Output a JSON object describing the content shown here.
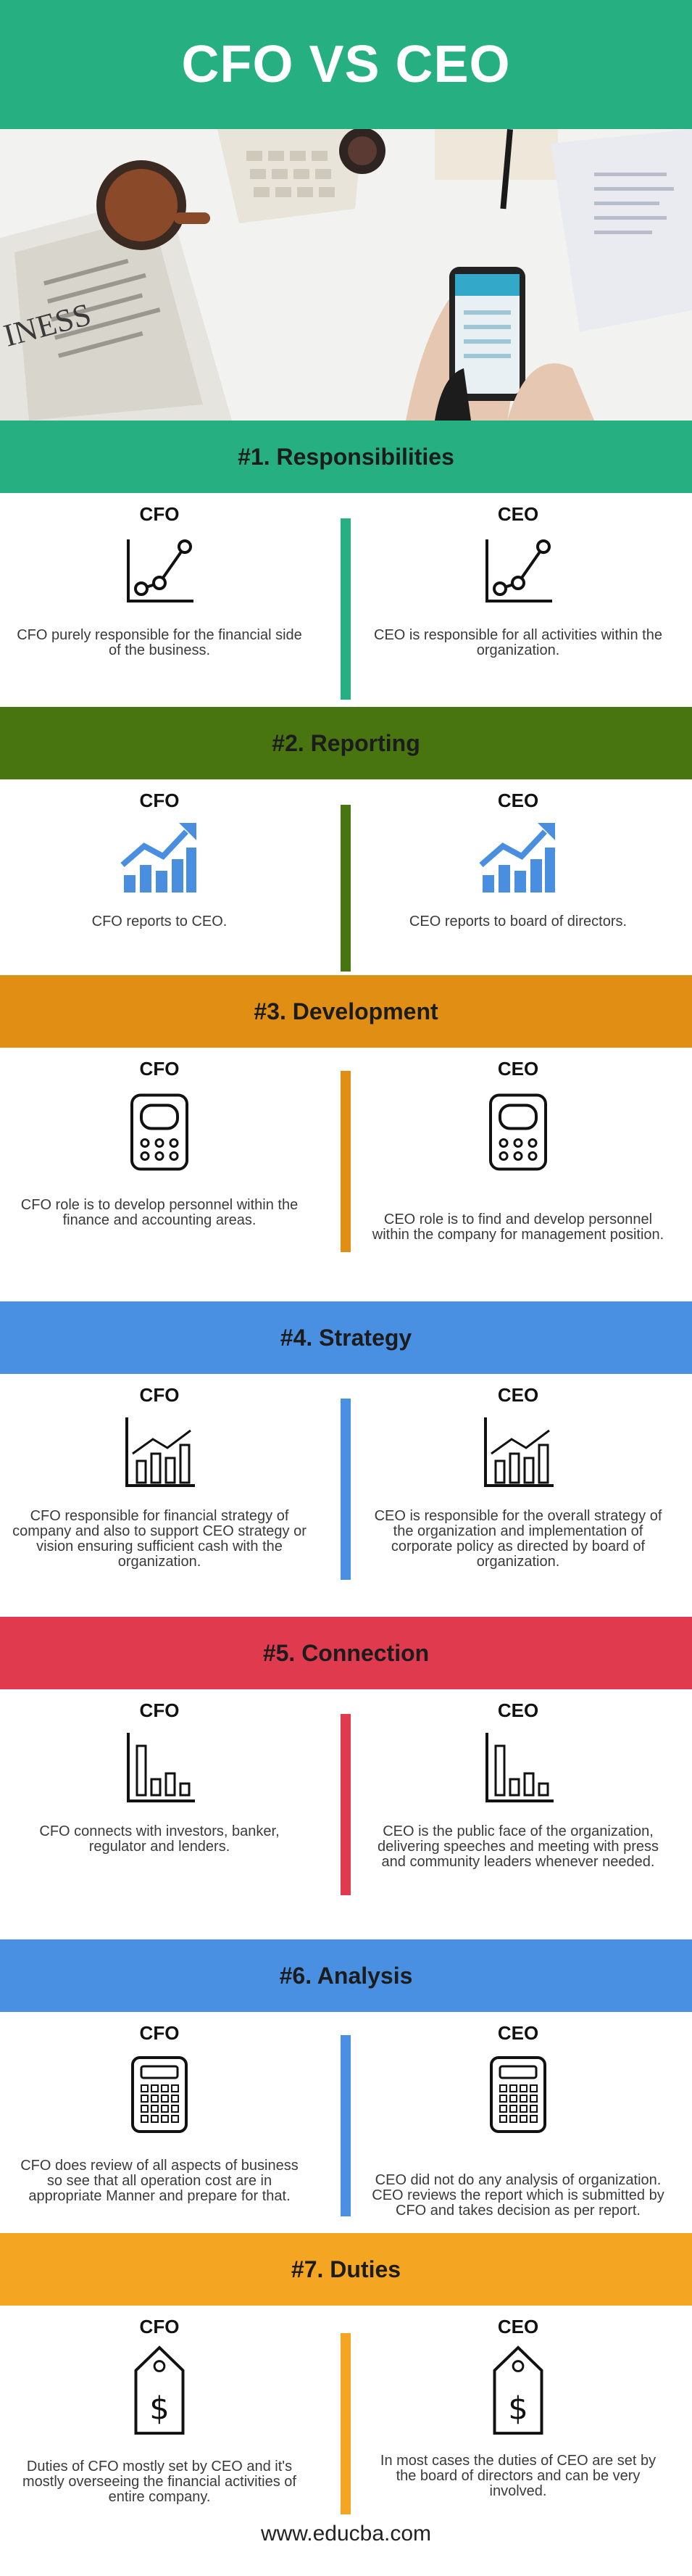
{
  "title": "CFO VS CEO",
  "colors": {
    "header": "#26b081",
    "responsibilities": "#26b081",
    "reporting": "#497510",
    "development": "#e08f14",
    "strategy": "#4a90e2",
    "connection": "#e03a4e",
    "analysis": "#4a90e2",
    "duties": "#f4a521"
  },
  "sections": [
    {
      "heading": "#1. Responsibilities",
      "icon": "line-chart-icon",
      "cfo_label": "CFO",
      "ceo_label": "CEO",
      "cfo_text": "CFO purely responsible for the financial side of the business.",
      "ceo_text": "CEO is responsible for all activities within the organization."
    },
    {
      "heading": "#2. Reporting",
      "icon": "growth-bars-icon",
      "cfo_label": "CFO",
      "ceo_label": "CEO",
      "cfo_text": "CFO reports to CEO.",
      "ceo_text": "CEO reports to board of directors."
    },
    {
      "heading": "#3. Development",
      "icon": "device-icon",
      "cfo_label": "CFO",
      "ceo_label": "CEO",
      "cfo_text": "CFO role is to develop personnel within the finance and accounting areas.",
      "ceo_text": "CEO role is to find and develop personnel within the company for management position."
    },
    {
      "heading": "#4. Strategy",
      "icon": "bar-trend-icon",
      "cfo_label": "CFO",
      "ceo_label": "CEO",
      "cfo_text": "CFO responsible for financial strategy of company and also to support CEO strategy or vision ensuring sufficient cash with the organization.",
      "ceo_text": "CEO is responsible for the overall strategy of the organization and implementation of corporate policy as directed by board of organization."
    },
    {
      "heading": "#5. Connection",
      "icon": "bar-chart-icon",
      "cfo_label": "CFO",
      "ceo_label": "CEO",
      "cfo_text": "CFO connects with investors, banker, regulator and lenders.",
      "ceo_text": "CEO is the public face of the organization, delivering speeches and meeting with press and community leaders whenever needed."
    },
    {
      "heading": "#6. Analysis",
      "icon": "calculator-icon",
      "cfo_label": "CFO",
      "ceo_label": "CEO",
      "cfo_text": "CFO does review of all aspects of business so see that all operation cost are in appropriate Manner and prepare for that.",
      "ceo_text": "CEO did not do any analysis of organization. CEO reviews the report which is submitted by CFO and takes decision as per report."
    },
    {
      "heading": "#7. Duties",
      "icon": "price-tag-icon",
      "cfo_label": "CFO",
      "ceo_label": "CEO",
      "cfo_text": "Duties of CFO mostly set by CEO and it's mostly overseeing the financial activities of entire company.",
      "ceo_text": "In most cases the duties of CEO are set by the board of directors and can be very involved."
    }
  ],
  "footer": "www.educba.com"
}
